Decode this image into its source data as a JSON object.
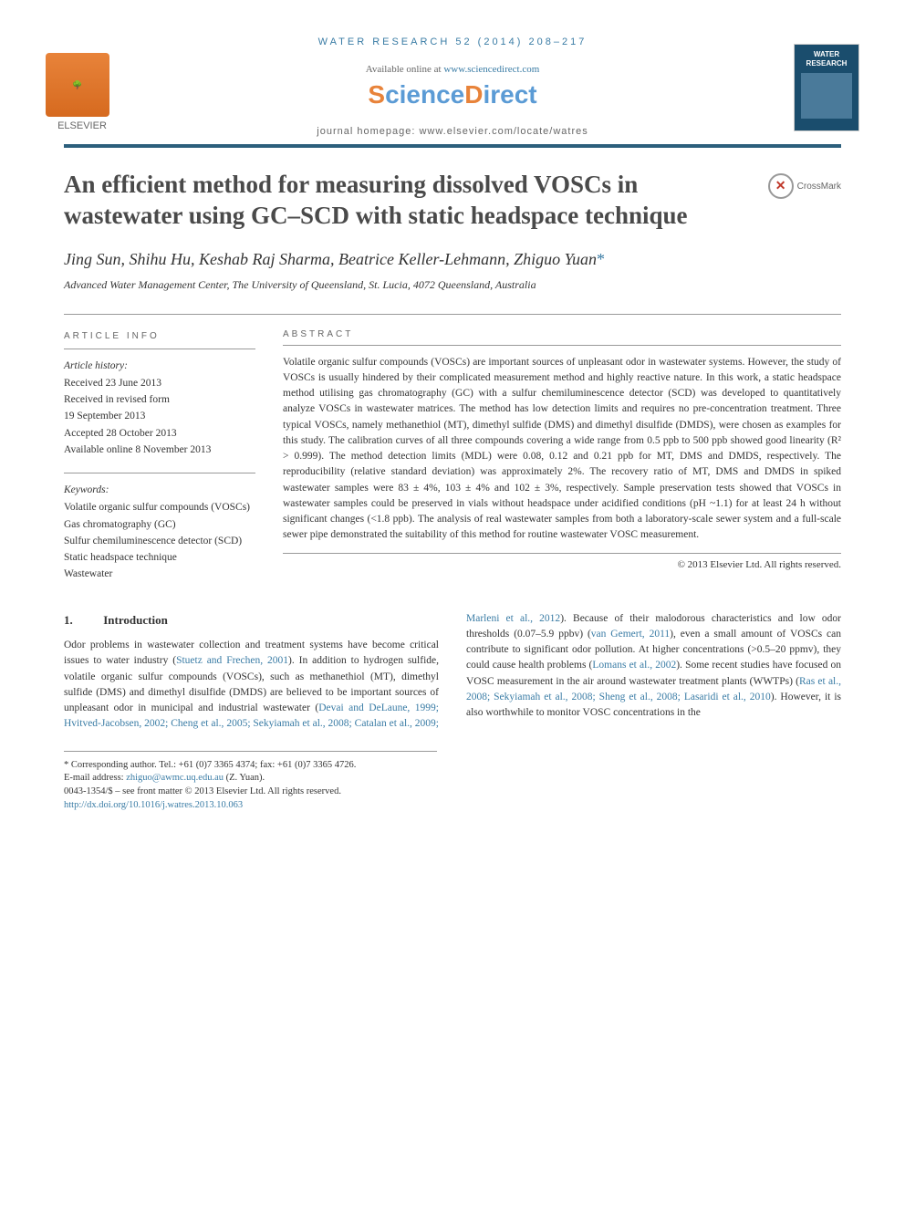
{
  "colors": {
    "accent": "#3a7ca5",
    "orange": "#e8833a",
    "rule": "#2c5f7c",
    "text": "#333333"
  },
  "header": {
    "running": "WATER RESEARCH 52 (2014) 208–217",
    "available_prefix": "Available online at ",
    "available_link": "www.sciencedirect.com",
    "sciencedirect": "ScienceDirect",
    "elsevier": "ELSEVIER",
    "journal_homepage": "journal homepage: www.elsevier.com/locate/watres",
    "cover_title": "WATER RESEARCH"
  },
  "title": "An efficient method for measuring dissolved VOSCs in wastewater using GC–SCD with static headspace technique",
  "crossmark": "CrossMark",
  "authors": "Jing Sun, Shihu Hu, Keshab Raj Sharma, Beatrice Keller-Lehmann, Zhiguo Yuan",
  "corr_mark": "*",
  "affiliation": "Advanced Water Management Center, The University of Queensland, St. Lucia, 4072 Queensland, Australia",
  "article_info": {
    "heading": "ARTICLE INFO",
    "history_label": "Article history:",
    "received": "Received 23 June 2013",
    "revised_label": "Received in revised form",
    "revised_date": "19 September 2013",
    "accepted": "Accepted 28 October 2013",
    "online": "Available online 8 November 2013",
    "keywords_label": "Keywords:",
    "keywords": [
      "Volatile organic sulfur compounds (VOSCs)",
      "Gas chromatography (GC)",
      "Sulfur chemiluminescence detector (SCD)",
      "Static headspace technique",
      "Wastewater"
    ]
  },
  "abstract": {
    "heading": "ABSTRACT",
    "text": "Volatile organic sulfur compounds (VOSCs) are important sources of unpleasant odor in wastewater systems. However, the study of VOSCs is usually hindered by their complicated measurement method and highly reactive nature. In this work, a static headspace method utilising gas chromatography (GC) with a sulfur chemiluminescence detector (SCD) was developed to quantitatively analyze VOSCs in wastewater matrices. The method has low detection limits and requires no pre-concentration treatment. Three typical VOSCs, namely methanethiol (MT), dimethyl sulfide (DMS) and dimethyl disulfide (DMDS), were chosen as examples for this study. The calibration curves of all three compounds covering a wide range from 0.5 ppb to 500 ppb showed good linearity (R² > 0.999). The method detection limits (MDL) were 0.08, 0.12 and 0.21 ppb for MT, DMS and DMDS, respectively. The reproducibility (relative standard deviation) was approximately 2%. The recovery ratio of MT, DMS and DMDS in spiked wastewater samples were 83 ± 4%, 103 ± 4% and 102 ± 3%, respectively. Sample preservation tests showed that VOSCs in wastewater samples could be preserved in vials without headspace under acidified conditions (pH ~1.1) for at least 24 h without significant changes (<1.8 ppb). The analysis of real wastewater samples from both a laboratory-scale sewer system and a full-scale sewer pipe demonstrated the suitability of this method for routine wastewater VOSC measurement.",
    "copyright": "© 2013 Elsevier Ltd. All rights reserved."
  },
  "intro": {
    "num": "1.",
    "heading": "Introduction",
    "para1_a": "Odor problems in wastewater collection and treatment systems have become critical issues to water industry (",
    "ref1": "Stuetz and Frechen, 2001",
    "para1_b": "). In addition to hydrogen sulfide, volatile organic sulfur compounds (VOSCs), such as methanethiol (MT), dimethyl sulfide (DMS) and dimethyl disulfide (DMDS) are believed to be important sources of unpleasant odor in municipal and industrial wastewater (",
    "ref2": "Devai and DeLaune, 1999; Hvitved-Jacobsen, 2002; Cheng et al., 2005; Sekyiamah",
    "para2_a": "et al., 2008; Catalan et al., 2009; Marleni et al., 2012",
    "para2_b": "). Because of their malodorous characteristics and low odor thresholds (0.07–5.9 ppbv) (",
    "ref3": "van Gemert, 2011",
    "para2_c": "), even a small amount of VOSCs can contribute to significant odor pollution. At higher concentrations (>0.5–20 ppmv), they could cause health problems (",
    "ref4": "Lomans et al., 2002",
    "para2_d": "). Some recent studies have focused on VOSC measurement in the air around wastewater treatment plants (WWTPs) (",
    "ref5": "Ras et al., 2008; Sekyiamah et al., 2008; Sheng et al., 2008; Lasaridi et al., 2010",
    "para2_e": "). However, it is also worthwhile to monitor VOSC concentrations in the"
  },
  "footer": {
    "corr": "* Corresponding author. Tel.: +61 (0)7 3365 4374; fax: +61 (0)7 3365 4726.",
    "email_label": "E-mail address: ",
    "email": "zhiguo@awmc.uq.edu.au",
    "email_suffix": " (Z. Yuan).",
    "issn": "0043-1354/$ – see front matter © 2013 Elsevier Ltd. All rights reserved.",
    "doi": "http://dx.doi.org/10.1016/j.watres.2013.10.063"
  }
}
